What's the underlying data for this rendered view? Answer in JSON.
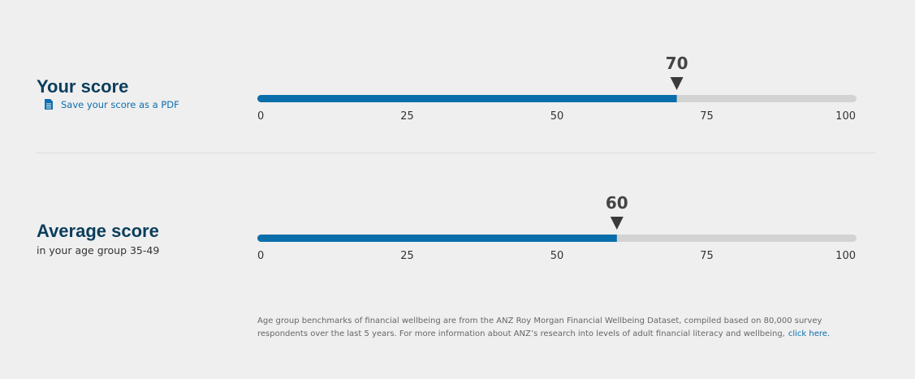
{
  "your_score": {
    "title": "Your score",
    "link": "Save your score as a PDF",
    "value": 70,
    "xlim": [
      0,
      100
    ],
    "xticks": [
      0,
      25,
      50,
      75,
      100
    ]
  },
  "average_score": {
    "title": "Average score",
    "subtitle": "in your age group 35-49",
    "value": 60,
    "xlim": [
      0,
      100
    ],
    "xticks": [
      0,
      25,
      50,
      75,
      100
    ]
  },
  "footnote": {
    "lines": [
      "Age group benchmarks of financial wellbeing are from the ANZ Roy Morgan Financial Wellbeing Dataset, compiled based on 80,000 survey",
      "respondents over the last 5 years. For more information about ANZ’s research into levels of adult financial literacy and wellbeing,"
    ],
    "link": "click here."
  }
}
